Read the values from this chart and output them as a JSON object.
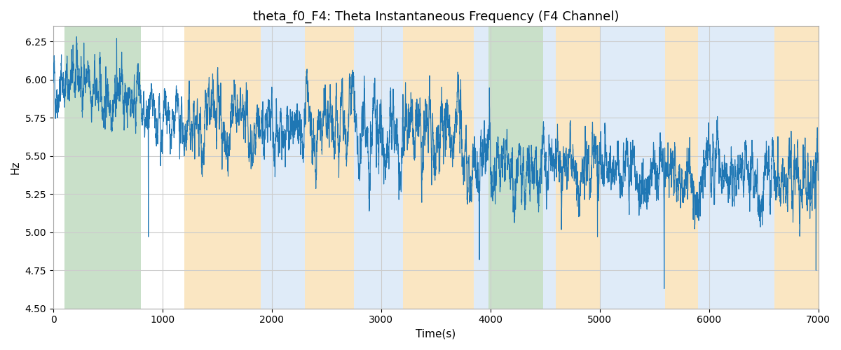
{
  "title": "theta_f0_F4: Theta Instantaneous Frequency (F4 Channel)",
  "xlabel": "Time(s)",
  "ylabel": "Hz",
  "xlim": [
    0,
    7000
  ],
  "ylim": [
    4.5,
    6.35
  ],
  "yticks": [
    4.5,
    4.75,
    5.0,
    5.25,
    5.5,
    5.75,
    6.0,
    6.25
  ],
  "xticks": [
    0,
    1000,
    2000,
    3000,
    4000,
    5000,
    6000,
    7000
  ],
  "line_color": "#1f77b4",
  "line_width": 0.8,
  "background_color": "#ffffff",
  "grid_color": "#cccccc",
  "title_fontsize": 13,
  "axis_label_fontsize": 11,
  "seed": 42,
  "colored_bands": [
    {
      "xmin": 100,
      "xmax": 800,
      "color": "#88bb88",
      "alpha": 0.45
    },
    {
      "xmin": 1200,
      "xmax": 1900,
      "color": "#f5c878",
      "alpha": 0.45
    },
    {
      "xmin": 1900,
      "xmax": 2300,
      "color": "#b8d4f0",
      "alpha": 0.45
    },
    {
      "xmin": 2300,
      "xmax": 2750,
      "color": "#f5c878",
      "alpha": 0.45
    },
    {
      "xmin": 2750,
      "xmax": 3200,
      "color": "#b8d4f0",
      "alpha": 0.45
    },
    {
      "xmin": 3200,
      "xmax": 3850,
      "color": "#f5c878",
      "alpha": 0.45
    },
    {
      "xmin": 3850,
      "xmax": 3980,
      "color": "#b8d4f0",
      "alpha": 0.45
    },
    {
      "xmin": 3980,
      "xmax": 4480,
      "color": "#88bb88",
      "alpha": 0.45
    },
    {
      "xmin": 4480,
      "xmax": 4600,
      "color": "#b8d4f0",
      "alpha": 0.45
    },
    {
      "xmin": 4600,
      "xmax": 5000,
      "color": "#f5c878",
      "alpha": 0.45
    },
    {
      "xmin": 5000,
      "xmax": 5600,
      "color": "#b8d4f0",
      "alpha": 0.45
    },
    {
      "xmin": 5600,
      "xmax": 5900,
      "color": "#f5c878",
      "alpha": 0.45
    },
    {
      "xmin": 5900,
      "xmax": 6600,
      "color": "#b8d4f0",
      "alpha": 0.45
    },
    {
      "xmin": 6600,
      "xmax": 7000,
      "color": "#f5c878",
      "alpha": 0.45
    }
  ],
  "segments": [
    {
      "xmin": 0,
      "xmax": 300,
      "mean": 5.98,
      "std": 0.055,
      "theta": 0.12
    },
    {
      "xmin": 300,
      "xmax": 800,
      "mean": 5.9,
      "std": 0.048,
      "theta": 0.1
    },
    {
      "xmin": 800,
      "xmax": 900,
      "mean": 5.72,
      "std": 0.045,
      "theta": 0.15
    },
    {
      "xmin": 900,
      "xmax": 1200,
      "mean": 5.68,
      "std": 0.048,
      "theta": 0.1
    },
    {
      "xmin": 1200,
      "xmax": 2200,
      "mean": 5.68,
      "std": 0.055,
      "theta": 0.08
    },
    {
      "xmin": 2200,
      "xmax": 2750,
      "mean": 5.68,
      "std": 0.06,
      "theta": 0.08
    },
    {
      "xmin": 2750,
      "xmax": 3200,
      "mean": 5.68,
      "std": 0.065,
      "theta": 0.08
    },
    {
      "xmin": 3200,
      "xmax": 3850,
      "mean": 5.62,
      "std": 0.065,
      "theta": 0.08
    },
    {
      "xmin": 3850,
      "xmax": 4000,
      "mean": 5.48,
      "std": 0.065,
      "theta": 0.1
    },
    {
      "xmin": 4000,
      "xmax": 4480,
      "mean": 5.46,
      "std": 0.055,
      "theta": 0.1
    },
    {
      "xmin": 4480,
      "xmax": 5000,
      "mean": 5.44,
      "std": 0.058,
      "theta": 0.1
    },
    {
      "xmin": 5000,
      "xmax": 5600,
      "mean": 5.4,
      "std": 0.055,
      "theta": 0.1
    },
    {
      "xmin": 5600,
      "xmax": 6000,
      "mean": 5.4,
      "std": 0.055,
      "theta": 0.1
    },
    {
      "xmin": 6000,
      "xmax": 7000,
      "mean": 5.38,
      "std": 0.055,
      "theta": 0.1
    }
  ],
  "special_features": [
    {
      "t": 870,
      "val": 4.97
    },
    {
      "t": 280,
      "val": 6.24
    },
    {
      "t": 580,
      "val": 6.27
    },
    {
      "t": 3900,
      "val": 4.82
    },
    {
      "t": 4980,
      "val": 4.97
    },
    {
      "t": 5590,
      "val": 4.63
    },
    {
      "t": 6980,
      "val": 4.75
    }
  ]
}
